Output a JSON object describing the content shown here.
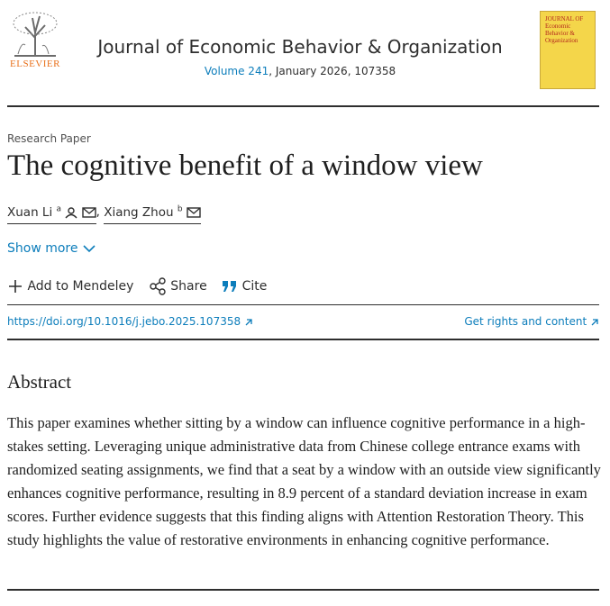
{
  "header": {
    "publisher": "ELSEVIER",
    "journal": "Journal of Economic Behavior & Organization",
    "volume": "Volume 241",
    "issue_info": ", January 2026, 107358",
    "cover_title": "JOURNAL OF Economic Behavior & Organization"
  },
  "article": {
    "type": "Research Paper",
    "title": "The cognitive benefit of a window view",
    "authors": [
      {
        "name": "Xuan Li",
        "affiliation": "a"
      },
      {
        "name": "Xiang Zhou",
        "affiliation": "b"
      }
    ],
    "author_separator": ",",
    "show_more": "Show more",
    "actions": [
      "Add to Mendeley",
      "Share",
      "Cite"
    ],
    "doi": "https://doi.org/10.1016/j.jebo.2025.107358",
    "rights": "Get rights and content"
  },
  "abstract": {
    "heading": "Abstract",
    "text": "This paper examines whether sitting by a window can influence cognitive performance in a high-stakes setting. Leveraging unique administrative data from Chinese college entrance exams with randomized seating assignments, we find that a seat by a window with an outside view significantly enhances cognitive performance, resulting in 8.9 percent of a standard deviation increase in exam scores. Further evidence suggests that this finding aligns with Attention Restoration Theory. This study highlights the value of restorative environments in enhancing cognitive performance."
  }
}
